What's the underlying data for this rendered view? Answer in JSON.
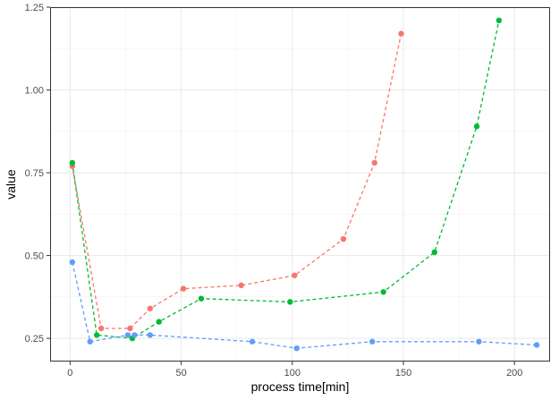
{
  "chart_data": {
    "type": "line",
    "xlabel": "process time[min]",
    "ylabel": "value",
    "xlim": [
      -9,
      216
    ],
    "ylim": [
      0.18,
      1.25
    ],
    "x_ticks": [
      0,
      50,
      100,
      150,
      200
    ],
    "x_tick_labels": [
      "0",
      "50",
      "100",
      "150",
      "200"
    ],
    "y_ticks": [
      0.25,
      0.5,
      0.75,
      1.0,
      1.25
    ],
    "y_tick_labels": [
      "0.25",
      "0.50",
      "0.75",
      "1.00",
      "1.25"
    ],
    "grid": true,
    "line_style": "dashed",
    "markers": true,
    "legend": "none",
    "series": [
      {
        "color": "#F8766D",
        "x": [
          1,
          14,
          27,
          36,
          51,
          77,
          101,
          123,
          137,
          149
        ],
        "y": [
          0.77,
          0.28,
          0.28,
          0.34,
          0.4,
          0.41,
          0.44,
          0.55,
          0.78,
          1.17
        ]
      },
      {
        "color": "#00BA38",
        "x": [
          1,
          12,
          28,
          40,
          59,
          99,
          141,
          164,
          183,
          193
        ],
        "y": [
          0.78,
          0.26,
          0.25,
          0.3,
          0.37,
          0.36,
          0.39,
          0.51,
          0.89,
          1.21
        ]
      },
      {
        "color": "#619CFF",
        "x": [
          1,
          9,
          26,
          29,
          36,
          82,
          102,
          136,
          184,
          210
        ],
        "y": [
          0.48,
          0.24,
          0.26,
          0.26,
          0.26,
          0.24,
          0.22,
          0.24,
          0.24,
          0.23
        ]
      }
    ]
  }
}
